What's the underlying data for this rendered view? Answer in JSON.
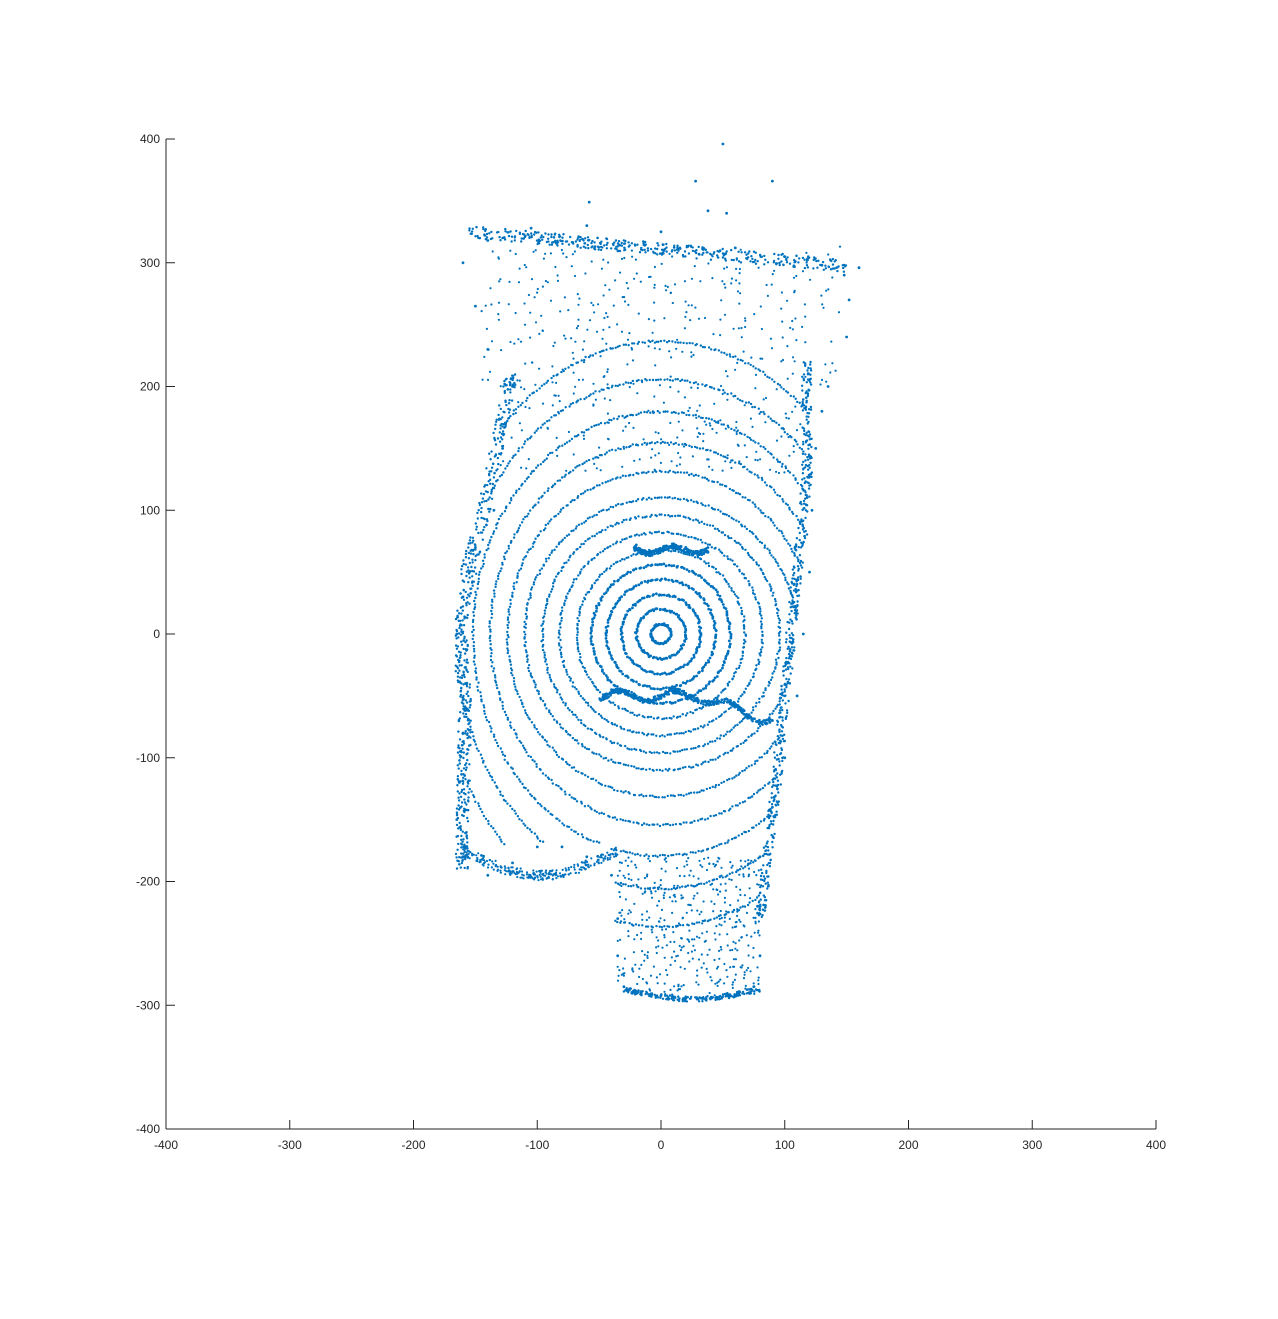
{
  "figure": {
    "background": "#ffffff",
    "axis_color": "#262626"
  },
  "chart_data": {
    "type": "scatter",
    "title": "",
    "xlabel": "",
    "ylabel": "",
    "xlim": [
      -400,
      400
    ],
    "ylim": [
      -400,
      400
    ],
    "x_ticks": [
      -400,
      -300,
      -200,
      -100,
      0,
      100,
      200,
      300,
      400
    ],
    "y_ticks": [
      -400,
      -300,
      -200,
      -100,
      0,
      100,
      200,
      300,
      400
    ],
    "x_tick_labels": [
      "-400",
      "-300",
      "-200",
      "-100",
      "0",
      "100",
      "200",
      "300",
      "400"
    ],
    "y_tick_labels": [
      "-400",
      "-300",
      "-200",
      "-100",
      "0",
      "100",
      "200",
      "300",
      "400"
    ],
    "grid": false,
    "legend": "none",
    "marker": "dot",
    "color": "#0072bd",
    "description_of_shape": "point cloud forming concentric contour rings centered at (0,0) inside a tall irregular outline",
    "ring_radii": [
      8,
      20,
      32,
      44,
      56,
      68,
      82,
      96,
      110,
      124,
      138,
      152,
      166,
      182
    ],
    "series": [
      {
        "points": [
          [
            50,
            396
          ],
          [
            28,
            366
          ],
          [
            90,
            366
          ],
          [
            -58,
            349
          ],
          [
            38,
            342
          ],
          [
            53,
            340
          ],
          [
            160,
            296
          ],
          [
            -160,
            300
          ],
          [
            -140,
            318
          ],
          [
            -105,
            328
          ],
          [
            -60,
            330
          ],
          [
            0,
            325
          ],
          [
            60,
            312
          ],
          [
            100,
            305
          ],
          [
            130,
            298
          ],
          [
            148,
            290
          ],
          [
            152,
            270
          ],
          [
            150,
            240
          ],
          [
            -150,
            265
          ],
          [
            -140,
            230
          ],
          [
            -120,
            200
          ],
          [
            -128,
            150
          ],
          [
            -135,
            100
          ],
          [
            -150,
            70
          ],
          [
            -160,
            30
          ],
          [
            -165,
            0
          ],
          [
            -158,
            -40
          ],
          [
            -160,
            -80
          ],
          [
            -163,
            -120
          ],
          [
            -165,
            -150
          ],
          [
            -160,
            -180
          ],
          [
            -140,
            -195
          ],
          [
            -120,
            -185
          ],
          [
            -100,
            -172
          ],
          [
            -80,
            -172
          ],
          [
            -60,
            -180
          ],
          [
            -40,
            -195
          ],
          [
            -35,
            -230
          ],
          [
            -35,
            -260
          ],
          [
            -30,
            -285
          ],
          [
            0,
            -292
          ],
          [
            30,
            -295
          ],
          [
            55,
            -293
          ],
          [
            75,
            -285
          ],
          [
            80,
            -260
          ],
          [
            78,
            -220
          ],
          [
            80,
            -180
          ],
          [
            90,
            -140
          ],
          [
            100,
            -100
          ],
          [
            110,
            -50
          ],
          [
            115,
            0
          ],
          [
            120,
            50
          ],
          [
            122,
            100
          ],
          [
            125,
            150
          ],
          [
            130,
            180
          ],
          [
            135,
            200
          ],
          [
            -20,
            72
          ],
          [
            0,
            68
          ],
          [
            20,
            70
          ],
          [
            38,
            66
          ],
          [
            -40,
            -45
          ],
          [
            -20,
            -50
          ],
          [
            0,
            -52
          ],
          [
            20,
            -48
          ],
          [
            40,
            -55
          ],
          [
            70,
            -68
          ],
          [
            90,
            -70
          ]
        ]
      }
    ]
  }
}
